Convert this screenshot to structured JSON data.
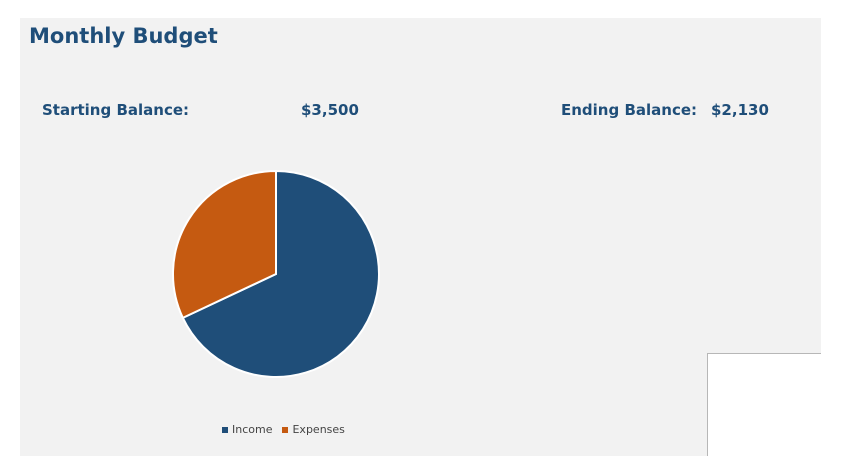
{
  "header": {
    "title": "Monthly Budget"
  },
  "summary": {
    "starting_label": "Starting Balance:",
    "starting_value": "$3,500",
    "ending_label": "Ending Balance:",
    "ending_value": "$2,130"
  },
  "chart_data": {
    "type": "pie",
    "title": "",
    "categories": [
      "Income",
      "Expenses"
    ],
    "values": [
      68,
      32
    ],
    "colors": [
      "#1f4e79",
      "#c55a11"
    ],
    "legend": "bottom"
  }
}
